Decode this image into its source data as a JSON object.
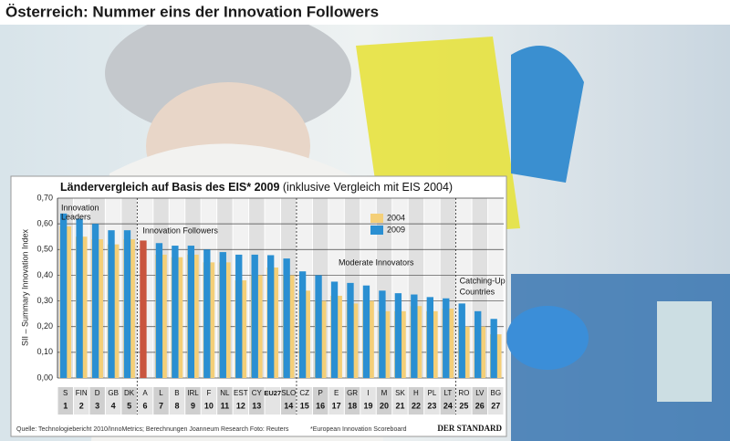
{
  "header": {
    "title": "Österreich: Nummer eins der Innovation Followers"
  },
  "chart_data": {
    "type": "bar",
    "title": "Ländervergleich auf Basis des EIS* 2009",
    "subtitle": "(inklusive Vergleich mit EIS 2004)",
    "y_label": "SII – Summary Innovation Index",
    "categories": [
      "S",
      "FIN",
      "D",
      "GB",
      "DK",
      "A",
      "L",
      "B",
      "IRL",
      "F",
      "NL",
      "EST",
      "CY",
      "EU27",
      "SLO",
      "CZ",
      "P",
      "E",
      "GR",
      "I",
      "M",
      "SK",
      "H",
      "PL",
      "LT",
      "RO",
      "LV",
      "BG"
    ],
    "ranks": [
      1,
      2,
      3,
      4,
      5,
      6,
      7,
      8,
      9,
      10,
      11,
      12,
      13,
      null,
      14,
      15,
      16,
      17,
      18,
      19,
      20,
      21,
      22,
      23,
      24,
      25,
      26,
      27
    ],
    "series": [
      {
        "name": "2004",
        "color": "#f4cf78",
        "values": [
          0.59,
          0.55,
          0.54,
          0.52,
          0.54,
          null,
          0.48,
          0.47,
          0.48,
          0.45,
          0.45,
          0.38,
          0.4,
          0.43,
          0.4,
          0.34,
          0.3,
          0.32,
          0.29,
          0.3,
          0.26,
          0.26,
          0.28,
          0.26,
          0.27,
          0.2,
          0.2,
          0.17
        ]
      },
      {
        "name": "2009",
        "color": "#2a8fd2",
        "values": [
          0.64,
          0.62,
          0.6,
          0.575,
          0.575,
          0.535,
          0.525,
          0.515,
          0.515,
          0.5,
          0.49,
          0.48,
          0.48,
          0.478,
          0.465,
          0.415,
          0.4,
          0.375,
          0.37,
          0.36,
          0.34,
          0.33,
          0.325,
          0.315,
          0.31,
          0.29,
          0.26,
          0.23
        ]
      }
    ],
    "highlight_category": "A",
    "highlight_color": "#c9553e",
    "groups": [
      {
        "label": [
          "Innovation",
          "Leaders"
        ],
        "from": "S",
        "to": "DK"
      },
      {
        "label": [
          "Innovation Followers"
        ],
        "from": "A",
        "to": "SLO"
      },
      {
        "label": [
          "Moderate Innovators"
        ],
        "from": "CZ",
        "to": "LT"
      },
      {
        "label": [
          "Catching-Up",
          "Countries"
        ],
        "from": "RO",
        "to": "BG"
      }
    ],
    "ylim": [
      0,
      0.7
    ],
    "yticks": [
      {
        "value": 0,
        "label": "0,00"
      },
      {
        "value": 0.1,
        "label": "0,10"
      },
      {
        "value": 0.2,
        "label": "0,20"
      },
      {
        "value": 0.3,
        "label": "0,30"
      },
      {
        "value": 0.4,
        "label": "0,40"
      },
      {
        "value": 0.5,
        "label": "0,50"
      },
      {
        "value": 0.6,
        "label": "0,60"
      },
      {
        "value": 0.7,
        "label": "0,70"
      }
    ],
    "grid": true,
    "source": "Quelle: Technologiebericht 2010/InnoMetrics; Berechnungen Joanneum Research   Foto: Reuters",
    "footnote": "*European Innovation Scoreboard",
    "publisher": "DER STANDARD"
  }
}
